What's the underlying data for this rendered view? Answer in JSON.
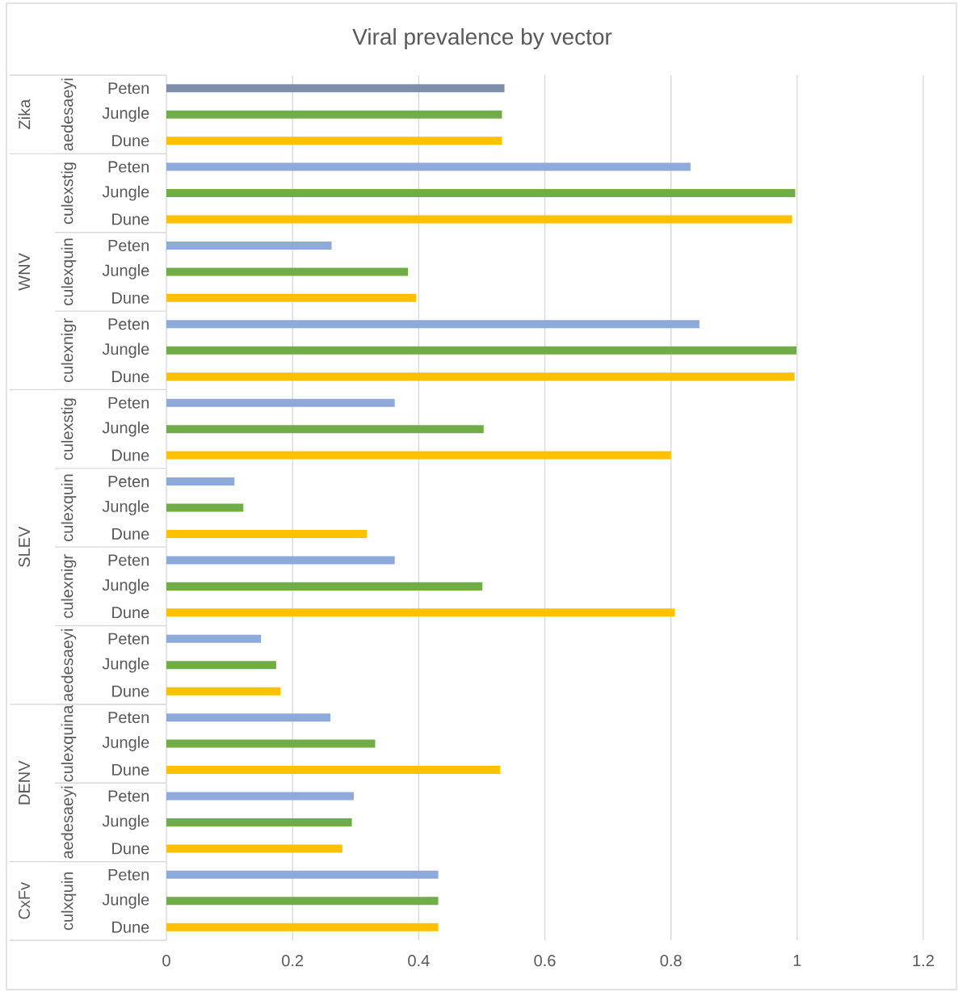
{
  "chart_data": {
    "type": "bar",
    "orientation": "horizontal",
    "title": "Viral prevalence by vector",
    "categories": [
      "Peten",
      "Jungle",
      "Dune",
      "Peten",
      "Jungle",
      "Dune",
      "Peten",
      "Jungle",
      "Dune",
      "Peten",
      "Jungle",
      "Dune",
      "Peten",
      "Jungle",
      "Dune",
      "Peten",
      "Jungle",
      "Dune",
      "Peten",
      "Jungle",
      "Dune",
      "Peten",
      "Jungle",
      "Dune",
      "Peten",
      "Jungle",
      "Dune",
      "Peten",
      "Jungle",
      "Dune",
      "Peten",
      "Jungle",
      "Dune"
    ],
    "values": [
      0.536,
      0.532,
      0.532,
      0.831,
      0.997,
      0.992,
      0.262,
      0.383,
      0.396,
      0.845,
      0.999,
      0.996,
      0.362,
      0.503,
      0.8,
      0.108,
      0.122,
      0.318,
      0.362,
      0.501,
      0.806,
      0.15,
      0.174,
      0.181,
      0.26,
      0.331,
      0.529,
      0.297,
      0.294,
      0.279,
      0.431,
      0.431,
      0.431
    ],
    "colors": [
      "#7f8faa",
      "#70ad47",
      "#ffc000",
      "#8eaadb",
      "#70ad47",
      "#ffc000",
      "#8eaadb",
      "#70ad47",
      "#ffc000",
      "#8eaadb",
      "#70ad47",
      "#ffc000",
      "#8eaadb",
      "#70ad47",
      "#ffc000",
      "#8eaadb",
      "#70ad47",
      "#ffc000",
      "#8eaadb",
      "#70ad47",
      "#ffc000",
      "#8eaadb",
      "#70ad47",
      "#ffc000",
      "#8eaadb",
      "#70ad47",
      "#ffc000",
      "#8eaadb",
      "#70ad47",
      "#ffc000",
      "#8eaadb",
      "#70ad47",
      "#ffc000"
    ],
    "xlim": [
      0,
      1.2
    ],
    "xticks": [
      0,
      0.2,
      0.4,
      0.6,
      0.8,
      1,
      1.2
    ],
    "grid": "x",
    "annotations": [
      "aedesaeyi",
      "culexstig",
      "culexquin",
      "culexnigr",
      "culexstig",
      "culexquin",
      "culexnigr",
      "aedesaeyi",
      "culexquina",
      "aedesaeyi",
      "culxquin",
      "Zika",
      "WNV",
      "SLEV",
      "DENV",
      "CxFv"
    ]
  }
}
